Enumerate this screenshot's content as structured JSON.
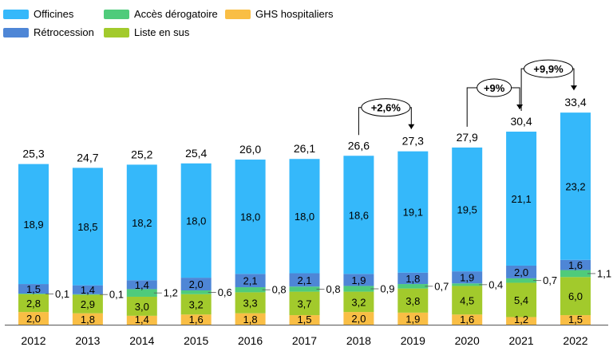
{
  "chart_data": {
    "type": "bar",
    "stacked": true,
    "categories": [
      "2012",
      "2013",
      "2014",
      "2015",
      "2016",
      "2017",
      "2018",
      "2019",
      "2020",
      "2021",
      "2022"
    ],
    "series": [
      {
        "name": "GHS hospitaliers",
        "color": "#F9BE45",
        "values": [
          2.0,
          1.8,
          1.4,
          1.6,
          1.8,
          1.5,
          2.0,
          1.9,
          1.6,
          1.2,
          1.5
        ],
        "labels": [
          "2,0",
          "1,8",
          "1,4",
          "1,6",
          "1,8",
          "1,5",
          "2,0",
          "1,9",
          "1,6",
          "1,2",
          "1,5"
        ]
      },
      {
        "name": "Liste en sus",
        "color": "#A2CA2C",
        "values": [
          2.8,
          2.9,
          3.0,
          3.2,
          3.3,
          3.7,
          3.2,
          3.8,
          4.5,
          5.4,
          6.0
        ],
        "labels": [
          "2,8",
          "2,9",
          "3,0",
          "3,2",
          "3,3",
          "3,7",
          "3,2",
          "3,8",
          "4,5",
          "5,4",
          "6,0"
        ]
      },
      {
        "name": "Accès dérogatoire",
        "color": "#4FCB7B",
        "values": [
          0.1,
          0.1,
          1.2,
          0.6,
          0.8,
          0.8,
          0.9,
          0.7,
          0.4,
          0.7,
          1.1
        ],
        "labels": [
          "0,1",
          "0,1",
          "1,2",
          "0,6",
          "0,8",
          "0,8",
          "0,9",
          "0,7",
          "0,4",
          "0,7",
          "1,1"
        ]
      },
      {
        "name": "Rétrocession",
        "color": "#4E86D6",
        "values": [
          1.5,
          1.4,
          1.4,
          2.0,
          2.1,
          2.1,
          1.9,
          1.8,
          1.9,
          2.0,
          1.6
        ],
        "labels": [
          "1,5",
          "1,4",
          "1,4",
          "2,0",
          "2,1",
          "2,1",
          "1,9",
          "1,8",
          "1,9",
          "2,0",
          "1,6"
        ]
      },
      {
        "name": "Officines",
        "color": "#35B8FA",
        "values": [
          18.9,
          18.5,
          18.2,
          18.0,
          18.0,
          18.0,
          18.6,
          19.1,
          19.5,
          21.1,
          23.2
        ],
        "labels": [
          "18,9",
          "18,5",
          "18,2",
          "18,0",
          "18,0",
          "18,0",
          "18,6",
          "19,1",
          "19,5",
          "21,1",
          "23,2"
        ]
      }
    ],
    "totals": [
      25.3,
      24.7,
      25.2,
      25.4,
      26.0,
      26.1,
      26.6,
      27.3,
      27.9,
      30.4,
      33.4
    ],
    "total_labels": [
      "25,3",
      "24,7",
      "25,2",
      "25,4",
      "26,0",
      "26,1",
      "26,6",
      "27,3",
      "27,9",
      "30,4",
      "33,4"
    ],
    "annotations": [
      {
        "text": "+2,6%",
        "from": "2018",
        "to": "2019"
      },
      {
        "text": "+9%",
        "from": "2020",
        "to": "2021"
      },
      {
        "text": "+9,9%",
        "from": "2021",
        "to": "2022"
      }
    ],
    "legend": {
      "position": "top-left",
      "items": [
        {
          "label": "Officines",
          "color": "#35B8FA"
        },
        {
          "label": "Accès dérogatoire",
          "color": "#4FCB7B"
        },
        {
          "label": "GHS hospitaliers",
          "color": "#F9BE45"
        },
        {
          "label": "Rétrocession",
          "color": "#4E86D6"
        },
        {
          "label": "Liste en sus",
          "color": "#A2CA2C"
        }
      ]
    },
    "title": "",
    "xlabel": "",
    "ylabel": "",
    "ylim": [
      0,
      35
    ]
  }
}
